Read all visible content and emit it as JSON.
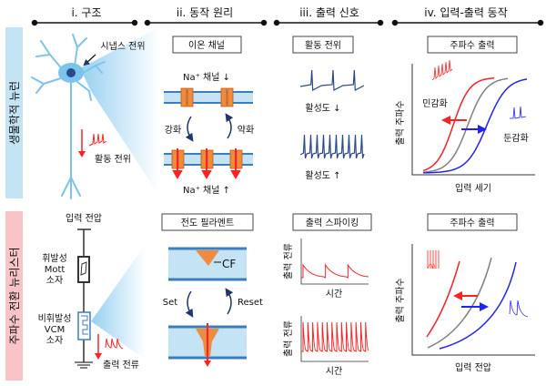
{
  "columns": [
    "i. 구조",
    "ii. 동작 원리",
    "iii. 출력 신호",
    "iv. 입력-출력 동작"
  ],
  "rows": {
    "top": "생물학적 뉴런",
    "bottom": "주파수 전환 뉴리스터"
  },
  "top": {
    "synapse_label": "시냅스 전위",
    "action_label": "활동 전위",
    "ion_box": "이온 채널",
    "na_down": "Na⁺ 채널 ↓",
    "na_up": "Na⁺ 채널 ↑",
    "strengthen": "강화",
    "weaken": "약화",
    "signal_box": "활동 전위",
    "activity_down": "활성도 ↓",
    "activity_up": "활성도 ↑",
    "freq_box": "주파수 출력",
    "sensitize": "민감화",
    "desensitize": "둔감화",
    "ylabel": "출력 주파수",
    "xlabel": "입력 세기"
  },
  "bottom": {
    "input_voltage": "입력 전압",
    "mott": [
      "휘발성",
      "Mott",
      "소자"
    ],
    "vcm": [
      "비휘발성",
      "VCM",
      "소자"
    ],
    "output_current": "출력 전류",
    "cf_box": "전도 필라멘트",
    "cf": "CF",
    "set": "Set",
    "reset": "Reset",
    "spike_box": "출력 스파이킹",
    "spike_ylabel": "출력 전류",
    "time": "시간",
    "freq_box": "주파수 출력",
    "ylabel": "출력 주파수",
    "xlabel": "입력 전압"
  },
  "colors": {
    "red": "#ff2020",
    "blue": "#2020ff",
    "gray": "#808080",
    "navy": "#2a4a8a",
    "neuron": "#7cc4ee",
    "orange": "#f08a3c"
  }
}
